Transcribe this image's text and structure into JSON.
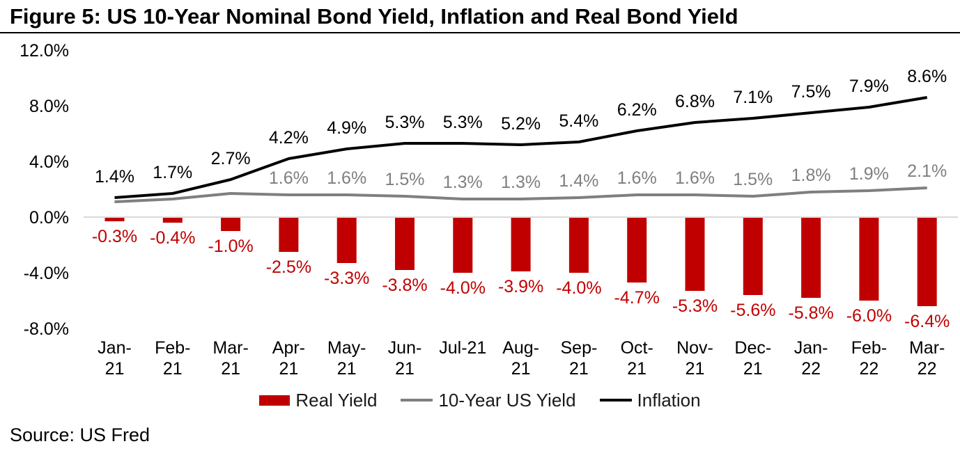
{
  "figure": {
    "title": "Figure 5: US 10-Year Nominal Bond Yield, Inflation and Real Bond Yield",
    "source": "Source: US Fred"
  },
  "colors": {
    "real_yield": "#c00000",
    "nominal_yield": "#7f7f7f",
    "inflation": "#000000",
    "zero_line": "#d9d9d9",
    "axis_text": "#000000"
  },
  "chart_data": {
    "type": "bar",
    "title": "Figure 5: US 10-Year Nominal Bond Yield, Inflation and Real Bond Yield",
    "xlabel": "",
    "ylabel": "",
    "ylim": [
      -8,
      12
    ],
    "grid": "zero-line-only",
    "legend_position": "bottom-center",
    "categories": [
      "Jan-21",
      "Feb-21",
      "Mar-21",
      "Apr-21",
      "May-21",
      "Jun-21",
      "Jul-21",
      "Aug-21",
      "Sep-21",
      "Oct-21",
      "Nov-21",
      "Dec-21",
      "Jan-22",
      "Feb-22",
      "Mar-22"
    ],
    "x_tick_lines": [
      [
        "Jan-",
        "21"
      ],
      [
        "Feb-",
        "21"
      ],
      [
        "Mar-",
        "21"
      ],
      [
        "Apr-",
        "21"
      ],
      [
        "May-",
        "21"
      ],
      [
        "Jun-",
        "21"
      ],
      [
        "Jul-21"
      ],
      [
        "Aug-",
        "21"
      ],
      [
        "Sep-",
        "21"
      ],
      [
        "Oct-",
        "21"
      ],
      [
        "Nov-",
        "21"
      ],
      [
        "Dec-",
        "21"
      ],
      [
        "Jan-",
        "22"
      ],
      [
        "Feb-",
        "22"
      ],
      [
        "Mar-",
        "22"
      ]
    ],
    "y_axis": {
      "ticks": [
        {
          "label": "12.0%",
          "value": 12
        },
        {
          "label": "8.0%",
          "value": 8
        },
        {
          "label": "4.0%",
          "value": 4
        },
        {
          "label": "0.0%",
          "value": 0
        },
        {
          "label": "-4.0%",
          "value": -4
        },
        {
          "label": "-8.0%",
          "value": -8
        }
      ]
    },
    "series": [
      {
        "name": "Real Yield",
        "type": "bar",
        "color": "#c00000",
        "values": [
          -0.3,
          -0.4,
          -1.0,
          -2.5,
          -3.3,
          -3.8,
          -4.0,
          -3.9,
          -4.0,
          -4.7,
          -5.3,
          -5.6,
          -5.8,
          -6.0,
          -6.4
        ],
        "labels": [
          "-0.3%",
          "-0.4%",
          "-1.0%",
          "-2.5%",
          "-3.3%",
          "-3.8%",
          "-4.0%",
          "-3.9%",
          "-4.0%",
          "-4.7%",
          "-5.3%",
          "-5.6%",
          "-5.8%",
          "-6.0%",
          "-6.4%"
        ]
      },
      {
        "name": "10-Year US Yield",
        "type": "line",
        "color": "#7f7f7f",
        "values": [
          1.1,
          1.3,
          1.7,
          1.6,
          1.6,
          1.5,
          1.3,
          1.3,
          1.4,
          1.6,
          1.6,
          1.5,
          1.8,
          1.9,
          2.1
        ],
        "labels": [
          null,
          null,
          null,
          "1.6%",
          "1.6%",
          "1.5%",
          "1.3%",
          "1.3%",
          "1.4%",
          "1.6%",
          "1.6%",
          "1.5%",
          "1.8%",
          "1.9%",
          "2.1%"
        ]
      },
      {
        "name": "Inflation",
        "type": "line",
        "color": "#000000",
        "values": [
          1.4,
          1.7,
          2.7,
          4.2,
          4.9,
          5.3,
          5.3,
          5.2,
          5.4,
          6.2,
          6.8,
          7.1,
          7.5,
          7.9,
          8.6
        ],
        "labels": [
          "1.4%",
          "1.7%",
          "2.7%",
          "4.2%",
          "4.9%",
          "5.3%",
          "5.3%",
          "5.2%",
          "5.4%",
          "6.2%",
          "6.8%",
          "7.1%",
          "7.5%",
          "7.9%",
          "8.6%"
        ]
      }
    ],
    "legend": [
      {
        "label": "Real Yield",
        "marker": "bar",
        "color": "#c00000"
      },
      {
        "label": "10-Year US Yield",
        "marker": "line",
        "color": "#7f7f7f"
      },
      {
        "label": "Inflation",
        "marker": "line",
        "color": "#000000"
      }
    ]
  }
}
